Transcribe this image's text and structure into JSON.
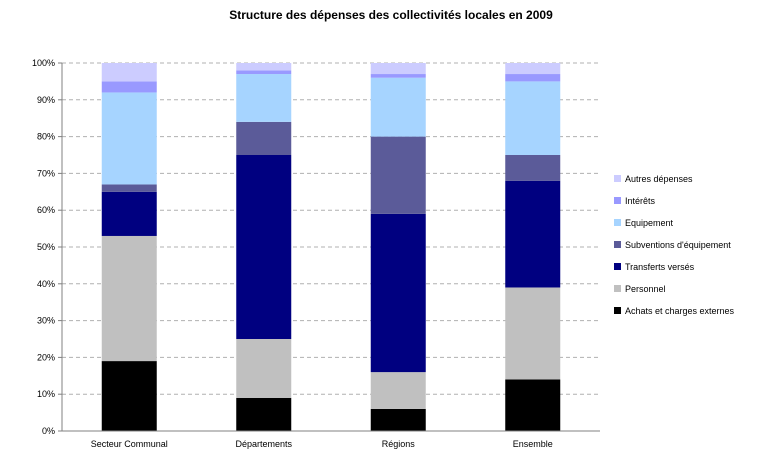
{
  "chart_data": {
    "type": "bar",
    "stacked": true,
    "percent": true,
    "title": "Structure des dépenses des collectivités locales en 2009",
    "categories": [
      "Secteur Communal",
      "Départements",
      "Régions",
      "Ensemble"
    ],
    "yticks": [
      "0%",
      "10%",
      "20%",
      "30%",
      "40%",
      "50%",
      "60%",
      "70%",
      "80%",
      "90%",
      "100%"
    ],
    "ylim": [
      0,
      100
    ],
    "grid": "horizontal dashed",
    "legend_position": "right",
    "series": [
      {
        "name": "Achats et charges externes",
        "color": "#000000",
        "values": [
          19,
          9,
          6,
          14
        ]
      },
      {
        "name": "Personnel",
        "color": "#c0c0c0",
        "values": [
          34,
          16,
          10,
          25
        ]
      },
      {
        "name": "Transferts versés",
        "color": "#000080",
        "values": [
          12,
          50,
          43,
          29
        ]
      },
      {
        "name": "Subventions d'équipement",
        "color": "#5b5b99",
        "values": [
          2,
          9,
          21,
          7
        ]
      },
      {
        "name": "Equipement",
        "color": "#a6d4ff",
        "values": [
          25,
          13,
          16,
          20
        ]
      },
      {
        "name": "Intérêts",
        "color": "#9999ff",
        "values": [
          3,
          1,
          1,
          2
        ]
      },
      {
        "name": "Autres dépenses",
        "color": "#ccccff",
        "values": [
          5,
          2,
          3,
          3
        ]
      }
    ]
  }
}
